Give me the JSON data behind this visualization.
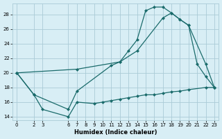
{
  "xlabel": "Humidex (Indice chaleur)",
  "bg_color": "#d8eef5",
  "grid_color": "#aacbd6",
  "line_color": "#1a6b6b",
  "xlim": [
    -0.5,
    23.5
  ],
  "ylim": [
    13.5,
    29.5
  ],
  "xticks": [
    0,
    2,
    3,
    6,
    7,
    8,
    9,
    10,
    11,
    12,
    13,
    14,
    15,
    16,
    17,
    18,
    19,
    20,
    21,
    22,
    23
  ],
  "yticks": [
    14,
    16,
    18,
    20,
    22,
    24,
    26,
    28
  ],
  "line1_x": [
    0,
    2,
    6,
    7,
    11,
    12,
    13,
    14,
    15,
    16,
    17,
    18,
    19,
    20,
    21,
    22,
    23
  ],
  "line1_y": [
    20,
    17,
    15,
    17.5,
    21.0,
    21.5,
    23.0,
    24.5,
    28.5,
    29.0,
    29.0,
    28.2,
    27.3,
    26.5,
    21.2,
    19.5,
    18.0
  ],
  "line2_x": [
    0,
    7,
    12,
    14,
    17,
    18,
    19,
    20,
    22,
    23
  ],
  "line2_y": [
    20,
    20.5,
    21.5,
    23.0,
    27.5,
    28.2,
    27.3,
    26.5,
    21.2,
    18.0
  ],
  "line3_x": [
    0,
    2,
    3,
    6,
    7,
    9,
    10,
    11,
    12,
    13,
    14,
    15,
    16,
    17,
    18,
    19,
    20,
    22,
    23
  ],
  "line3_y": [
    20,
    17.0,
    15.0,
    14.0,
    16.0,
    15.8,
    16.0,
    16.2,
    16.4,
    16.6,
    16.8,
    17.0,
    17.0,
    17.2,
    17.4,
    17.5,
    17.7,
    18.0,
    18.0
  ]
}
